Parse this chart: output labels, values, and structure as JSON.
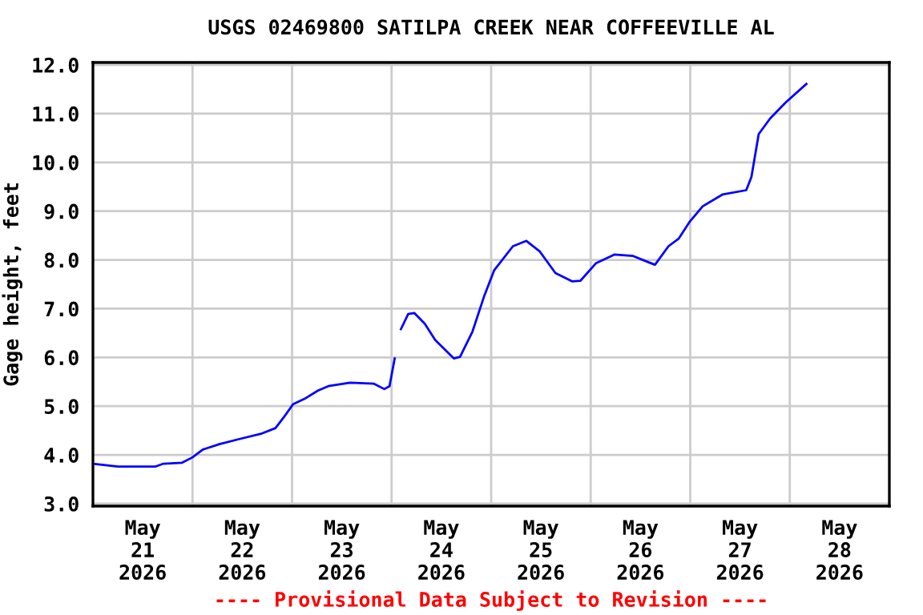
{
  "chart_data": {
    "type": "line",
    "title": "USGS 02469800 SATILPA CREEK NEAR COFFEEVILLE AL",
    "ylabel": "Gage height, feet",
    "annotations": [
      "---- Provisional Data Subject to Revision ----"
    ],
    "x": [
      "2026-05-21T00:00",
      "2026-05-21T06:00",
      "2026-05-21T15:00",
      "2026-05-21T17:00",
      "2026-05-21T21:30",
      "2026-05-22T00:00",
      "2026-05-22T02:30",
      "2026-05-22T06:30",
      "2026-05-22T11:30",
      "2026-05-22T16:45",
      "2026-05-22T20:00",
      "2026-05-22T22:00",
      "2026-05-23T00:15",
      "2026-05-23T03:00",
      "2026-05-23T06:15",
      "2026-05-23T08:45",
      "2026-05-23T14:00",
      "2026-05-23T19:45",
      "2026-05-23T22:15",
      "2026-05-23T23:30",
      "2026-05-24T00:45",
      "2026-05-24T01:30",
      "2026-05-24T02:15",
      "2026-05-24T04:00",
      "2026-05-24T05:30",
      "2026-05-24T08:00",
      "2026-05-24T10:30",
      "2026-05-24T15:00",
      "2026-05-24T16:30",
      "2026-05-24T19:30",
      "2026-05-24T22:15",
      "2026-05-25T00:45",
      "2026-05-25T05:15",
      "2026-05-25T08:30",
      "2026-05-25T11:45",
      "2026-05-25T15:30",
      "2026-05-25T19:30",
      "2026-05-25T21:30",
      "2026-05-26T01:15",
      "2026-05-26T05:45",
      "2026-05-26T10:15",
      "2026-05-26T14:00",
      "2026-05-26T15:30",
      "2026-05-26T18:45",
      "2026-05-26T21:15",
      "2026-05-26T23:45",
      "2026-05-27T03:00",
      "2026-05-27T07:45",
      "2026-05-27T13:30",
      "2026-05-27T14:45",
      "2026-05-27T16:30",
      "2026-05-27T19:15",
      "2026-05-27T23:00",
      "2026-05-28T04:00"
    ],
    "series": [
      {
        "color": "#0000ff",
        "values": [
          3.82,
          3.76,
          3.76,
          3.82,
          3.84,
          3.95,
          4.11,
          4.22,
          4.33,
          4.44,
          4.55,
          4.77,
          5.04,
          5.15,
          5.32,
          5.41,
          5.48,
          5.46,
          5.35,
          5.41,
          5.98,
          null,
          6.58,
          6.89,
          6.91,
          6.69,
          6.36,
          5.98,
          6.01,
          6.53,
          7.24,
          7.79,
          8.28,
          8.39,
          8.17,
          7.73,
          7.56,
          7.57,
          7.93,
          8.11,
          8.08,
          7.95,
          7.9,
          8.28,
          8.44,
          8.77,
          9.1,
          9.34,
          9.43,
          9.7,
          10.58,
          10.9,
          11.23,
          11.61
        ]
      }
    ],
    "xlim": [
      "2026-05-21T00:00",
      "2026-05-29T00:00"
    ],
    "xticks": [
      {
        "value": "2026-05-21T12:00",
        "label": "May\n21\n2026"
      },
      {
        "value": "2026-05-22T00:00",
        "label": null
      },
      {
        "value": "2026-05-22T12:00",
        "label": "May\n22\n2026"
      },
      {
        "value": "2026-05-23T00:00",
        "label": null
      },
      {
        "value": "2026-05-23T12:00",
        "label": "May\n23\n2026"
      },
      {
        "value": "2026-05-24T00:00",
        "label": null
      },
      {
        "value": "2026-05-24T12:00",
        "label": "May\n24\n2026"
      },
      {
        "value": "2026-05-25T00:00",
        "label": null
      },
      {
        "value": "2026-05-25T12:00",
        "label": "May\n25\n2026"
      },
      {
        "value": "2026-05-26T00:00",
        "label": null
      },
      {
        "value": "2026-05-26T12:00",
        "label": "May\n26\n2026"
      },
      {
        "value": "2026-05-27T00:00",
        "label": null
      },
      {
        "value": "2026-05-27T12:00",
        "label": "May\n27\n2026"
      },
      {
        "value": "2026-05-28T00:00",
        "label": null
      },
      {
        "value": "2026-05-28T12:00",
        "label": "May\n28\n2026"
      }
    ],
    "ylim": [
      2.95,
      12.05
    ],
    "yticks": [
      {
        "value": 3,
        "label": "3.0"
      },
      {
        "value": 4,
        "label": "4.0"
      },
      {
        "value": 5,
        "label": "5.0"
      },
      {
        "value": 6,
        "label": "6.0"
      },
      {
        "value": 7,
        "label": "7.0"
      },
      {
        "value": 8,
        "label": "8.0"
      },
      {
        "value": 9,
        "label": "9.0"
      },
      {
        "value": 10,
        "label": "10.0"
      },
      {
        "value": 11,
        "label": "11.0"
      },
      {
        "value": 12,
        "label": "12.0"
      }
    ],
    "grid": true,
    "line_style": "solid",
    "marker": "none"
  }
}
